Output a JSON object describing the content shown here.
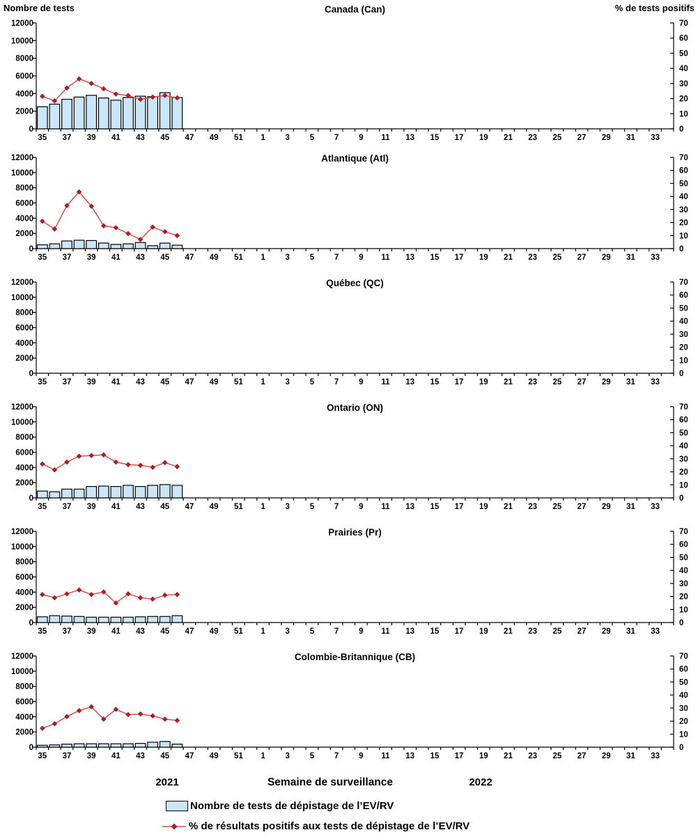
{
  "chart_data": {
    "type": "bar+line combo, 6 stacked panels",
    "left_axis": {
      "title": "Nombre de tests",
      "min": 0,
      "max": 12000,
      "step": 2000
    },
    "right_axis": {
      "title": "% de tests positifs",
      "min": 0,
      "max": 70,
      "step": 10
    },
    "x_axis_label": "Semaine de surveillance",
    "year_labels": [
      "2021",
      "2022"
    ],
    "x_tick_labels": [
      "35",
      "37",
      "39",
      "41",
      "43",
      "45",
      "47",
      "49",
      "51",
      "1",
      "3",
      "5",
      "7",
      "9",
      "11",
      "13",
      "15",
      "17",
      "19",
      "21",
      "23",
      "25",
      "27",
      "29",
      "31",
      "33"
    ],
    "n_week_slots": 52,
    "bar_weeks": [
      "35",
      "36",
      "37",
      "38",
      "39",
      "40",
      "41",
      "42",
      "43",
      "44",
      "45",
      "46"
    ],
    "colors": {
      "bar_fill": "#CBE6F8",
      "bar_border": "#000000",
      "line": "#D2524C",
      "marker": "#AE1C28"
    },
    "legend": [
      {
        "type": "bar",
        "label": "Nombre de tests de dépistage de l’EV/RV"
      },
      {
        "type": "line",
        "label": "% de résultats positifs aux tests de dépistage de l’EV/RV"
      }
    ],
    "panels": [
      {
        "title": "Canada (Can)",
        "bars": [
          2500,
          2800,
          3350,
          3600,
          3800,
          3500,
          3250,
          3550,
          3700,
          3650,
          4100,
          3550
        ],
        "pct": [
          21.5,
          18.5,
          27,
          33,
          30,
          26.5,
          23,
          22,
          19.5,
          21,
          22,
          20.5
        ]
      },
      {
        "title": "Atlantique (Atl)",
        "bars": [
          500,
          620,
          1000,
          1100,
          1060,
          730,
          550,
          620,
          800,
          380,
          720,
          450
        ],
        "pct": [
          21,
          15,
          33,
          43.5,
          32.5,
          17.5,
          16,
          11.5,
          7,
          16.5,
          13,
          10
        ]
      },
      {
        "title": "Québec (QC)",
        "bars": [],
        "pct": []
      },
      {
        "title": "Ontario (ON)",
        "bars": [
          900,
          800,
          1150,
          1150,
          1500,
          1550,
          1500,
          1650,
          1500,
          1650,
          1750,
          1650
        ],
        "pct": [
          26,
          21.5,
          27.5,
          32,
          32.5,
          33,
          27.5,
          25.5,
          25,
          23.5,
          27,
          24
        ]
      },
      {
        "title": "Prairies (Pr)",
        "bars": [
          750,
          900,
          850,
          800,
          700,
          700,
          700,
          700,
          750,
          800,
          800,
          900
        ],
        "pct": [
          21.5,
          19,
          22,
          25,
          21.5,
          23.5,
          15,
          22,
          19,
          18,
          21,
          21.5
        ]
      },
      {
        "title": "Colombie-Britannique (CB)",
        "bars": [
          250,
          300,
          400,
          450,
          450,
          450,
          450,
          450,
          500,
          650,
          750,
          400
        ],
        "pct": [
          14.5,
          18,
          23.5,
          28,
          31,
          21.5,
          29,
          25,
          25.5,
          24,
          21.5,
          20.5
        ]
      }
    ]
  }
}
